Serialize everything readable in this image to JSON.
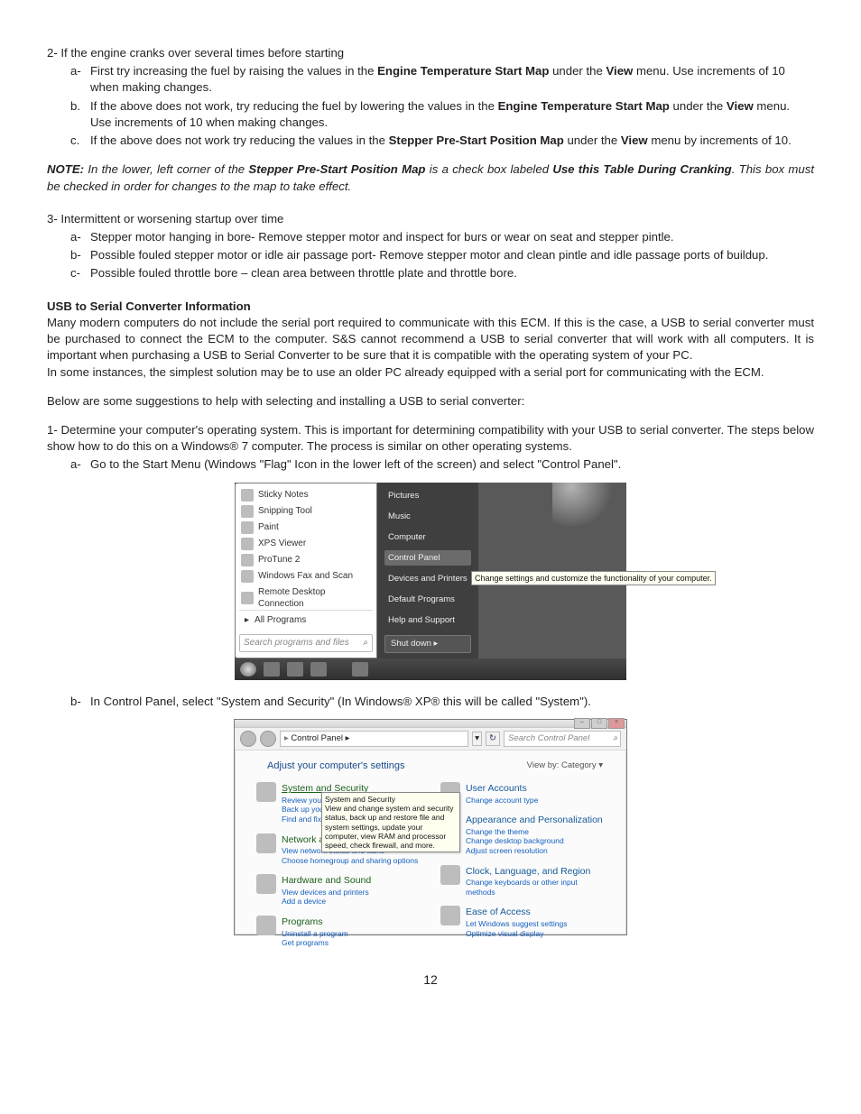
{
  "troubleshoot": {
    "item2": {
      "head": "2-  If the engine cranks over several times before starting",
      "subs": [
        {
          "m": "a-",
          "pre": "First try increasing the fuel by raising the values in the ",
          "b1": "Engine Temperature Start Map",
          "mid": " under the ",
          "b2": "View",
          "post": " menu. Use increments of 10 when making changes."
        },
        {
          "m": "b.",
          "pre": "If the above does not work, try reducing the fuel by lowering the values in the ",
          "b1": "Engine Temperature Start Map",
          "mid": " under the ",
          "b2": "View",
          "post": " menu. Use increments of 10 when making changes."
        },
        {
          "m": "c.",
          "pre": "If the above does not work try reducing the values in the ",
          "b1": "Stepper Pre-Start Position Map",
          "mid": " under the ",
          "b2": "View",
          "post": " menu by increments of 10."
        }
      ]
    },
    "note": {
      "label": "NOTE:",
      "pre": " In the lower, left corner of the ",
      "b1": "Stepper Pre-Start Position Map",
      "mid": " is a check box labeled ",
      "b2": "Use this Table During Cranking",
      "post": ".  This box must be checked in order for changes to the map to take effect."
    },
    "item3": {
      "head": "3-  Intermittent or worsening startup over time",
      "subs": [
        {
          "m": "a-",
          "text": "Stepper motor hanging in bore- Remove stepper motor and inspect for burs or wear on seat and stepper pintle."
        },
        {
          "m": "b-",
          "text": "Possible fouled stepper motor or idle air passage port- Remove stepper motor and clean pintle and idle passage ports of buildup."
        },
        {
          "m": "c-",
          "text": "Possible fouled throttle bore – clean area between throttle plate and throttle bore."
        }
      ]
    }
  },
  "usb": {
    "heading": "USB to Serial Converter Information",
    "p1": "Many modern computers do not include the serial port required to communicate with this ECM.  If this is the case, a USB to serial converter must be purchased to connect the ECM to the computer. S&S cannot recommend a USB to serial converter that will work with all computers.  It is important when purchasing a USB to Serial Converter to be sure that it is compatible with the operating system of your PC.",
    "p2": "In some instances, the simplest solution may be to use an older PC already equipped with a serial port for communicating with the ECM.",
    "p3": "Below are some suggestions to help with selecting and installing a USB to serial converter:",
    "item1": {
      "head": "1-  Determine your computer's operating system.  This is important for determining compatibility with your USB to serial converter. The steps below show how to do this on a Windows® 7 computer.  The process is similar on other operating systems.",
      "sub_a": {
        "m": "a-",
        "text": "Go to the Start Menu (Windows \"Flag\" Icon in the lower left of the screen) and select \"Control Panel\"."
      },
      "sub_b": {
        "m": "b-",
        "text": "In Control Panel, select \"System and Security\" (In Windows® XP® this will be called \"System\")."
      }
    }
  },
  "shot1": {
    "programs": [
      "Sticky Notes",
      "Snipping Tool",
      "Paint",
      "XPS Viewer",
      "ProTune 2",
      "Windows Fax and Scan",
      "Remote Desktop Connection"
    ],
    "all_programs": "All Programs",
    "search_placeholder": "Search programs and files",
    "right_items": [
      "Pictures",
      "Music",
      "Computer",
      "Control Panel",
      "Devices and Printers",
      "Default Programs",
      "Help and Support"
    ],
    "right_highlight_index": 3,
    "shutdown": "Shut down",
    "tooltip": "Change settings and customize the functionality of your computer."
  },
  "shot2": {
    "breadcrumb": "Control Panel  ▸",
    "search_placeholder": "Search Control Panel",
    "adjust": "Adjust your computer's settings",
    "viewby": "View by:    Category ▾",
    "tooltip_title": "System and Security",
    "tooltip_body": "View and change system and security status, back up and restore file and system settings, update your computer, view RAM and processor speed, check firewall, and more.",
    "left": [
      {
        "title": "System and Security",
        "blue": false,
        "underline": true,
        "subs": [
          "Review your computer's status",
          "Back up your computer",
          "Find and fix problems"
        ]
      },
      {
        "title": "Network and Internet",
        "blue": false,
        "subs": [
          "View network status and tasks",
          "Choose homegroup and sharing options"
        ]
      },
      {
        "title": "Hardware and Sound",
        "blue": false,
        "subs": [
          "View devices and printers",
          "Add a device"
        ]
      },
      {
        "title": "Programs",
        "blue": false,
        "subs": [
          "Uninstall a program",
          "Get programs"
        ]
      }
    ],
    "right": [
      {
        "title": "User Accounts",
        "blue": true,
        "subs": [
          "Change account type"
        ]
      },
      {
        "title": "Appearance and Personalization",
        "blue": true,
        "subs": [
          "Change the theme",
          "Change desktop background",
          "Adjust screen resolution"
        ]
      },
      {
        "title": "Clock, Language, and Region",
        "blue": true,
        "subs": [
          "Change keyboards or other input methods"
        ]
      },
      {
        "title": "Ease of Access",
        "blue": true,
        "subs": [
          "Let Windows suggest settings",
          "Optimize visual display"
        ]
      }
    ]
  },
  "page_number": "12"
}
